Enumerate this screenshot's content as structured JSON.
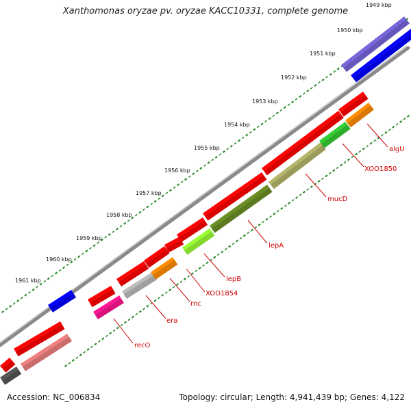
{
  "title": "Xanthomonas oryzae pv. oryzae KACC10331, complete genome",
  "footer": {
    "accession": "Accession: NC_006834",
    "summary": "Topology: circular; Length: 4,941,439 bp; Genes: 4,122"
  },
  "scale_labels": [
    "1949 kbp",
    "1950 kbp",
    "1951 kbp",
    "1952 kbp",
    "1953 kbp",
    "1954 kbp",
    "1955 kbp",
    "1956 kbp",
    "1957 kbp",
    "1958 kbp",
    "1959 kbp",
    "1960 kbp",
    "1961 kbp"
  ],
  "gene_labels": [
    "algU",
    "XOO1850",
    "mucD",
    "lepA",
    "lepB",
    "XOO1854",
    "rnc",
    "era",
    "recO"
  ],
  "colors": {
    "backbone": "#8a8a8a",
    "dots": "#2e8b2e",
    "label": "#cc0000",
    "gene_red": "#ff0000",
    "gene_blue": "#0000ff",
    "gene_violet": "#7766dd",
    "algU": "#ff8c00",
    "XOO1850": "#33cc33",
    "mucD": "#b5b56a",
    "lepA": "#6b8e23",
    "lepB": "#99ff33",
    "rnc": "#ff8c00",
    "era": "#bbbbbb",
    "recO": "#ff1493",
    "pink": "#f08080",
    "dark_gray": "#555555"
  }
}
